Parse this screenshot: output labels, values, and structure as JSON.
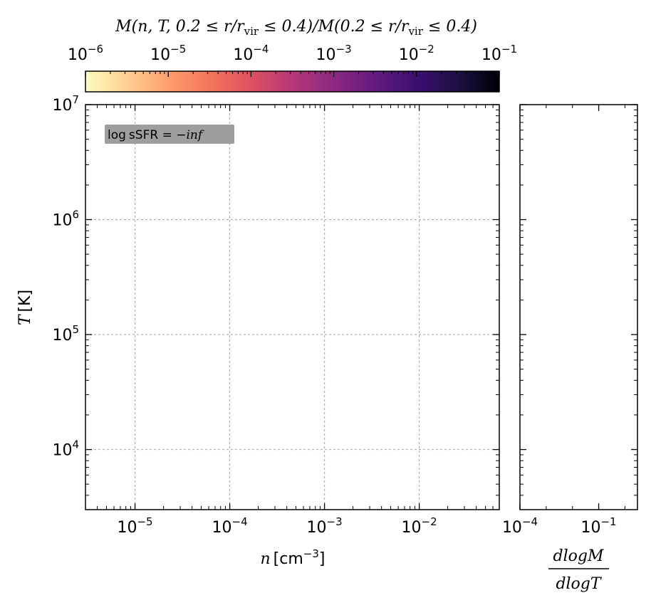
{
  "chart_data": {
    "type": "heatmap",
    "panels": [
      {
        "name": "phase-diagram",
        "xlabel_base": "n",
        "xlabel_unit": "cm",
        "xlabel_unit_exp": "−3",
        "ylabel_base": "T",
        "ylabel_unit": "K",
        "xscale": "log",
        "yscale": "log",
        "xlim": [
          3e-06,
          0.07
        ],
        "ylim": [
          3000,
          10000000
        ],
        "x_tick_exponents": [
          -5,
          -4,
          -3,
          -2
        ],
        "y_tick_exponents": [
          4,
          5,
          6,
          7
        ],
        "grid": true,
        "annotation": "log sSFR = −inf",
        "annotation_parts": {
          "func": "log",
          "name": "sSFR",
          "eq": " = −",
          "val": "inf"
        },
        "cells": []
      },
      {
        "name": "temperature-distribution",
        "xscale": "log",
        "xlim": [
          0.0001,
          3
        ],
        "x_tick_labels": [
          {
            "base": "10",
            "exp": "−4"
          },
          {
            "base": "10",
            "exp": "−1"
          }
        ],
        "xlabel_numer": "dlogM",
        "xlabel_denom": "dlogT",
        "values": []
      }
    ],
    "colorbar": {
      "label": "M(n, T, 0.2 ≤ r/r_vir ≤ 0.4)/M(0.2 ≤ r/r_vir ≤ 0.4)",
      "label_parts": {
        "p1": "M(n, T, 0.2 ≤ r/r",
        "sub1": "vir",
        "p2": " ≤ 0.4)/M(0.2 ≤ r/r",
        "sub2": "vir",
        "p3": " ≤ 0.4)"
      },
      "scale": "log",
      "range": [
        1e-06,
        0.1
      ],
      "tick_exponents": [
        -6,
        -5,
        -4,
        -3,
        -2,
        -1
      ],
      "colormap": "magma_r",
      "stops": [
        "#fcfdbf",
        "#fecf92",
        "#fc9f6d",
        "#f3765c",
        "#dd5161",
        "#b73779",
        "#8c2981",
        "#641a80",
        "#3b0f70",
        "#1c1044",
        "#000004"
      ]
    }
  }
}
